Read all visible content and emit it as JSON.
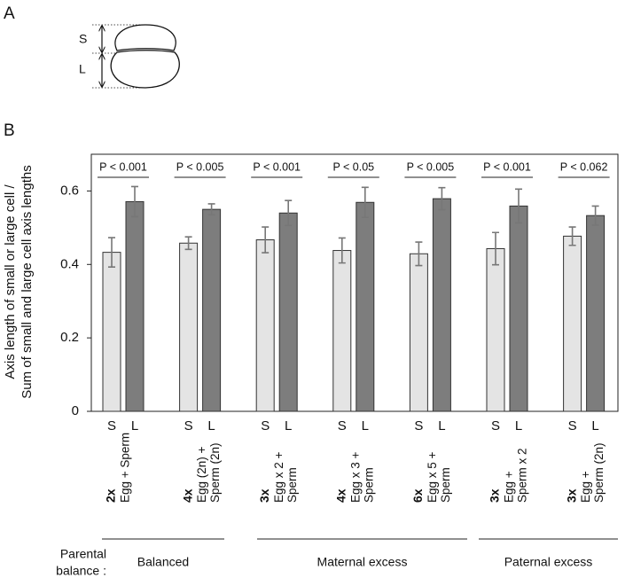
{
  "panel_a": {
    "label": "A",
    "small": "S",
    "large": "L"
  },
  "chart_data": {
    "type": "bar",
    "panel_label": "B",
    "y_label": [
      "Axis length of small or large cell /",
      "Sum of small and large cell axis lengths"
    ],
    "categories": [
      "2x",
      "4x",
      "3x",
      "4x",
      "6x",
      "3x",
      "3x"
    ],
    "category_sublabels": [
      [
        "Egg + Sperm"
      ],
      [
        "Egg (2n) +",
        "Sperm (2n)"
      ],
      [
        "Egg x 2 +",
        "Sperm"
      ],
      [
        "Egg x 3 +",
        "Sperm"
      ],
      [
        "Egg x 5 +",
        "Sperm"
      ],
      [
        "Egg +",
        "Sperm x 2"
      ],
      [
        "Egg +",
        "Sperm (2n)"
      ]
    ],
    "p_values": [
      "P < 0.001",
      "P < 0.005",
      "P < 0.001",
      "P < 0.05",
      "P < 0.005",
      "P < 0.001",
      "P < 0.062"
    ],
    "series": [
      {
        "name": "S",
        "color": "#e4e4e4",
        "values": [
          0.433,
          0.458,
          0.467,
          0.438,
          0.429,
          0.443,
          0.477
        ],
        "errors": [
          0.04,
          0.017,
          0.035,
          0.034,
          0.032,
          0.044,
          0.025
        ]
      },
      {
        "name": "L",
        "color": "#7d7d7d",
        "values": [
          0.571,
          0.55,
          0.54,
          0.569,
          0.579,
          0.559,
          0.533
        ],
        "errors": [
          0.041,
          0.015,
          0.034,
          0.041,
          0.03,
          0.046,
          0.026
        ]
      }
    ],
    "ylim": [
      0,
      0.7
    ],
    "yticks": [
      0,
      0.2,
      0.4,
      0.6
    ],
    "balance_label": [
      "Parental",
      "balance :"
    ],
    "balance_groups": [
      "Balanced",
      "Maternal excess",
      "Paternal excess"
    ]
  }
}
